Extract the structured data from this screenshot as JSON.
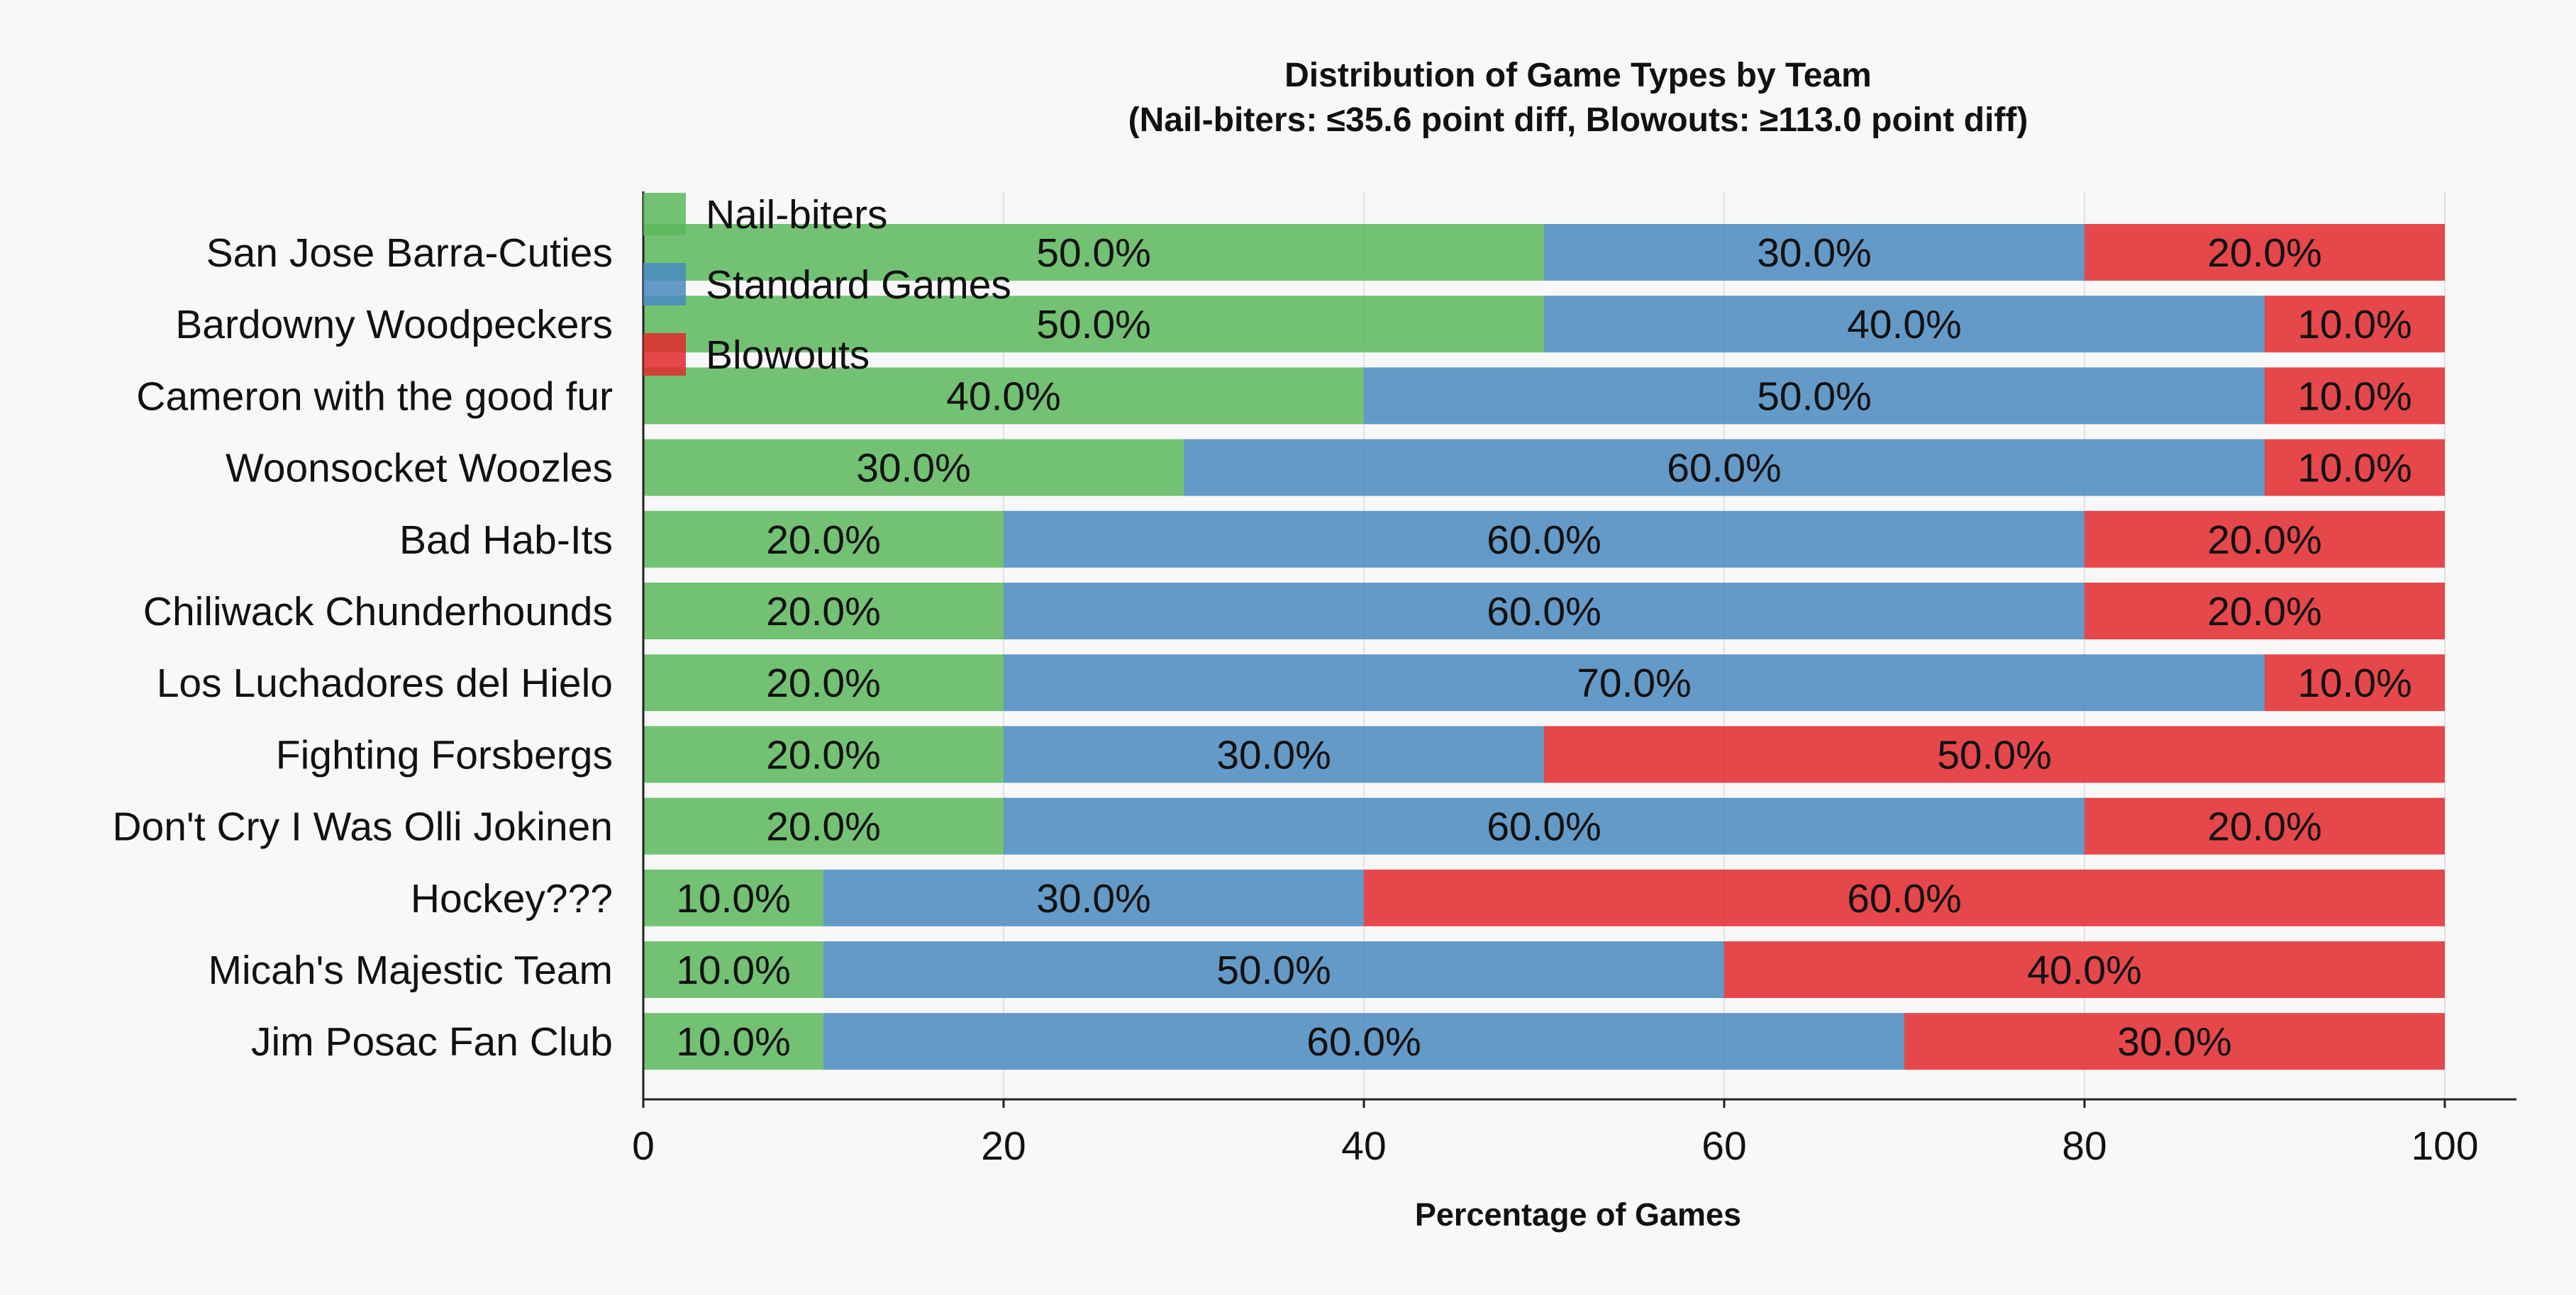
{
  "chart_data": {
    "type": "bar",
    "orientation": "horizontal",
    "stacked": true,
    "title": "Distribution of Game Types by Team",
    "subtitle": "(Nail-biters: ≤35.6 point diff, Blowouts: ≥113.0 point diff)",
    "xlabel": "Percentage of Games",
    "ylabel": "",
    "xlim": [
      0,
      100
    ],
    "xticks": [
      0,
      20,
      40,
      60,
      80,
      100
    ],
    "xtick_labels": [
      "0",
      "20",
      "40",
      "60",
      "80",
      "100"
    ],
    "grid": "vertical",
    "legend_position": "top-left",
    "categories": [
      "San Jose Barra-Cuties",
      "Bardowny Woodpeckers",
      "Cameron with the good fur",
      "Woonsocket Woozles",
      "Bad Hab-Its",
      "Chiliwack Chunderhounds",
      "Los Luchadores del Hielo",
      "Fighting Forsbergs",
      "Don't Cry I Was Olli Jokinen",
      "Hockey???",
      "Micah's Majestic Team",
      "Jim Posac Fan Club"
    ],
    "series": [
      {
        "name": "Nail-biters",
        "color": "#5cb85c",
        "values": [
          50,
          50,
          40,
          30,
          20,
          20,
          20,
          20,
          20,
          10,
          10,
          10
        ],
        "labels": [
          "50.0%",
          "50.0%",
          "40.0%",
          "30.0%",
          "20.0%",
          "20.0%",
          "20.0%",
          "20.0%",
          "20.0%",
          "10.0%",
          "10.0%",
          "10.0%"
        ]
      },
      {
        "name": "Standard Games",
        "color": "#4a89c0",
        "values": [
          30,
          40,
          50,
          60,
          60,
          60,
          70,
          30,
          60,
          30,
          50,
          60
        ],
        "labels": [
          "30.0%",
          "40.0%",
          "50.0%",
          "60.0%",
          "60.0%",
          "60.0%",
          "70.0%",
          "30.0%",
          "60.0%",
          "30.0%",
          "50.0%",
          "60.0%"
        ]
      },
      {
        "name": "Blowouts",
        "color": "#e3282c",
        "values": [
          20,
          10,
          10,
          10,
          20,
          20,
          10,
          50,
          20,
          60,
          40,
          30
        ],
        "labels": [
          "20.0%",
          "10.0%",
          "10.0%",
          "10.0%",
          "20.0%",
          "20.0%",
          "10.0%",
          "50.0%",
          "20.0%",
          "60.0%",
          "40.0%",
          "30.0%"
        ]
      }
    ]
  }
}
